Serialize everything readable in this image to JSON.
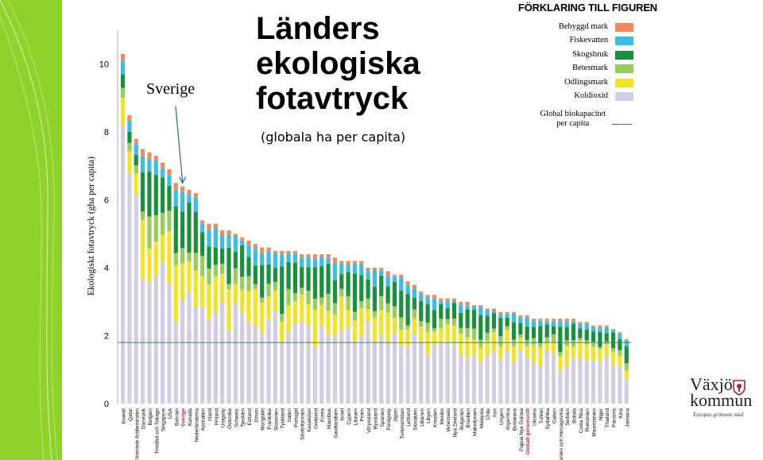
{
  "title_lines": [
    "Länders",
    "ekologiska",
    "fotavtryck"
  ],
  "subtitle": "(globala ha per capita)",
  "annotation": "Sverige",
  "legend": {
    "title": "FÖRKLARING TILL FIGUREN",
    "items": [
      {
        "label": "Bebyggd mark",
        "color": "#f28b5b"
      },
      {
        "label": "Fiskevatten",
        "color": "#3bbde7"
      },
      {
        "label": "Skogsbruk",
        "color": "#17923b"
      },
      {
        "label": "Betesmark",
        "color": "#96ce59"
      },
      {
        "label": "Odlingsmark",
        "color": "#f3e327"
      },
      {
        "label": "Koldioxid",
        "color": "#d2cde2"
      }
    ],
    "capacity_label_1": "Global biokapacitet",
    "capacity_label_2": "per capita",
    "capacity_color": "#2e8b4e"
  },
  "logo": {
    "name": "Växjö",
    "name2": "kommun",
    "tagline": "Europas grönaste stad"
  },
  "chart_data": {
    "type": "bar",
    "stacked": true,
    "title": "",
    "ylabel": "Ekologiskt fotavtryck (gha per capita)",
    "xlabel": "",
    "ylim": [
      0,
      11
    ],
    "yticks": [
      0,
      2,
      4,
      6,
      8,
      10
    ],
    "global_biocapacity": 1.8,
    "highlight_color": "#c2185b",
    "series_order": [
      "Koldioxid",
      "Odlingsmark",
      "Betesmark",
      "Skogsbruk",
      "Fiskevatten",
      "Bebyggd mark"
    ],
    "categories": [
      {
        "name": "Kuwait",
        "total": 10.3
      },
      {
        "name": "Qatar",
        "total": 8.5
      },
      {
        "name": "Förenade Arabemiraten",
        "total": 7.8
      },
      {
        "name": "Danmark",
        "total": 7.5
      },
      {
        "name": "Belgien",
        "total": 7.4
      },
      {
        "name": "Trinidad och Tobago",
        "total": 7.3
      },
      {
        "name": "Singapore",
        "total": 7.1
      },
      {
        "name": "USA",
        "total": 6.9
      },
      {
        "name": "Bahrain",
        "total": 6.5
      },
      {
        "name": "Sverige",
        "total": 6.4,
        "highlight": true
      },
      {
        "name": "Kanada",
        "total": 6.3
      },
      {
        "name": "Nederländerna",
        "total": 6.2
      },
      {
        "name": "Australien",
        "total": 5.4
      },
      {
        "name": "Irland",
        "total": 5.3
      },
      {
        "name": "Finland",
        "total": 5.3
      },
      {
        "name": "Uruguay",
        "total": 5.1
      },
      {
        "name": "Österrike",
        "total": 5.1
      },
      {
        "name": "Schweiz",
        "total": 5.0
      },
      {
        "name": "Tjeckien",
        "total": 4.9
      },
      {
        "name": "Estland",
        "total": 4.8
      },
      {
        "name": "Oman",
        "total": 4.7
      },
      {
        "name": "Mongoliet",
        "total": 4.6
      },
      {
        "name": "Frankrike",
        "total": 4.6
      },
      {
        "name": "Slovenien",
        "total": 4.5
      },
      {
        "name": "Tyskland",
        "total": 4.5
      },
      {
        "name": "Italien",
        "total": 4.5
      },
      {
        "name": "Portugal",
        "total": 4.5
      },
      {
        "name": "Storbritannien",
        "total": 4.4
      },
      {
        "name": "Kazakstan",
        "total": 4.4
      },
      {
        "name": "Grekland",
        "total": 4.4
      },
      {
        "name": "Korea",
        "total": 4.4
      },
      {
        "name": "Mauritius",
        "total": 4.4
      },
      {
        "name": "Saudiarabien",
        "total": 4.3
      },
      {
        "name": "Israel",
        "total": 4.2
      },
      {
        "name": "Cypern",
        "total": 4.2
      },
      {
        "name": "Litauen",
        "total": 4.2
      },
      {
        "name": "Polen",
        "total": 4.2
      },
      {
        "name": "Vitryssland",
        "total": 4.0
      },
      {
        "name": "Ryssland",
        "total": 4.0
      },
      {
        "name": "Spanien",
        "total": 4.0
      },
      {
        "name": "Paraguay",
        "total": 3.9
      },
      {
        "name": "Japan",
        "total": 3.8
      },
      {
        "name": "Turkmenistan",
        "total": 3.8
      },
      {
        "name": "Lettland",
        "total": 3.6
      },
      {
        "name": "Slovakien",
        "total": 3.5
      },
      {
        "name": "Libanon",
        "total": 3.3
      },
      {
        "name": "Libyen",
        "total": 3.2
      },
      {
        "name": "Kroatien",
        "total": 3.2
      },
      {
        "name": "Mexiko",
        "total": 3.1
      },
      {
        "name": "Venezuela",
        "total": 3.1
      },
      {
        "name": "Nya Zeeland",
        "total": 3.1
      },
      {
        "name": "Bulgarien",
        "total": 3.0
      },
      {
        "name": "Brasilien",
        "total": 3.0
      },
      {
        "name": "Makedonien",
        "total": 2.9
      },
      {
        "name": "Malaysia",
        "total": 2.9
      },
      {
        "name": "Chile",
        "total": 2.8
      },
      {
        "name": "Iran",
        "total": 2.8
      },
      {
        "name": "Ungern",
        "total": 2.7
      },
      {
        "name": "Argentina",
        "total": 2.7
      },
      {
        "name": "Botswana",
        "total": 2.7
      },
      {
        "name": "Papua Nya Guinea",
        "total": 2.6
      },
      {
        "name": "Globalt genomsnitt",
        "total": 2.6,
        "highlight": true
      },
      {
        "name": "Ukraina",
        "total": 2.5
      },
      {
        "name": "Turkiet",
        "total": 2.5
      },
      {
        "name": "Sydafrika",
        "total": 2.5
      },
      {
        "name": "Gabon",
        "total": 2.5
      },
      {
        "name": "Bosnien och Hercegovina",
        "total": 2.5
      },
      {
        "name": "Serbien",
        "total": 2.5
      },
      {
        "name": "Bolivia",
        "total": 2.5
      },
      {
        "name": "Costa Rica",
        "total": 2.4
      },
      {
        "name": "Rumänien",
        "total": 2.4
      },
      {
        "name": "Mauretanien",
        "total": 2.3
      },
      {
        "name": "Niger",
        "total": 2.3
      },
      {
        "name": "Thailand",
        "total": 2.3
      },
      {
        "name": "Panama",
        "total": 2.2
      },
      {
        "name": "Kina",
        "total": 2.1
      },
      {
        "name": "Jamaica",
        "total": 1.9
      }
    ]
  }
}
